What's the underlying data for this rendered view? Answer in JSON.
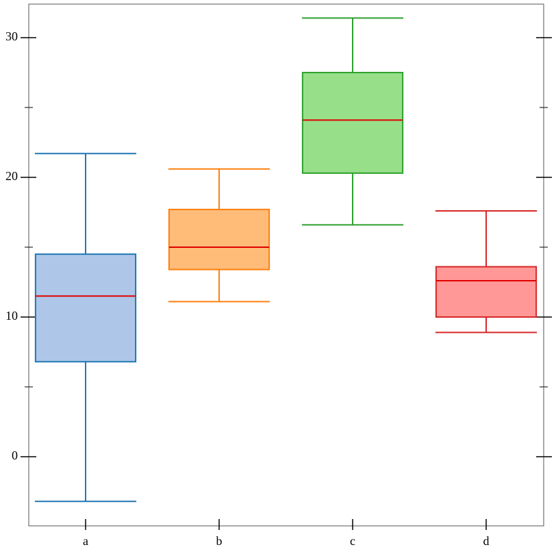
{
  "chart_data": {
    "type": "box",
    "categories": [
      "a",
      "b",
      "c",
      "d"
    ],
    "boxes": [
      {
        "low": -3.2,
        "q1": 6.8,
        "median": 11.5,
        "q3": 14.5,
        "high": 21.7,
        "color": "#1f77b4",
        "fill": "#aec7e8"
      },
      {
        "low": 11.1,
        "q1": 13.4,
        "median": 15.0,
        "q3": 17.7,
        "high": 20.6,
        "color": "#ff7f0e",
        "fill": "#ffbb78"
      },
      {
        "low": 16.6,
        "q1": 20.3,
        "median": 24.1,
        "q3": 27.5,
        "high": 31.4,
        "color": "#2ca02c",
        "fill": "#98df8a"
      },
      {
        "low": 8.9,
        "q1": 10.0,
        "median": 12.6,
        "q3": 13.6,
        "high": 17.6,
        "color": "#d62728",
        "fill": "#ff9896"
      }
    ],
    "median_color": "#e00000",
    "ylim": [
      -4.95,
      32.4
    ],
    "yticks": [
      0,
      10,
      20,
      30
    ],
    "yticks_minor": [
      5,
      15,
      25
    ]
  }
}
